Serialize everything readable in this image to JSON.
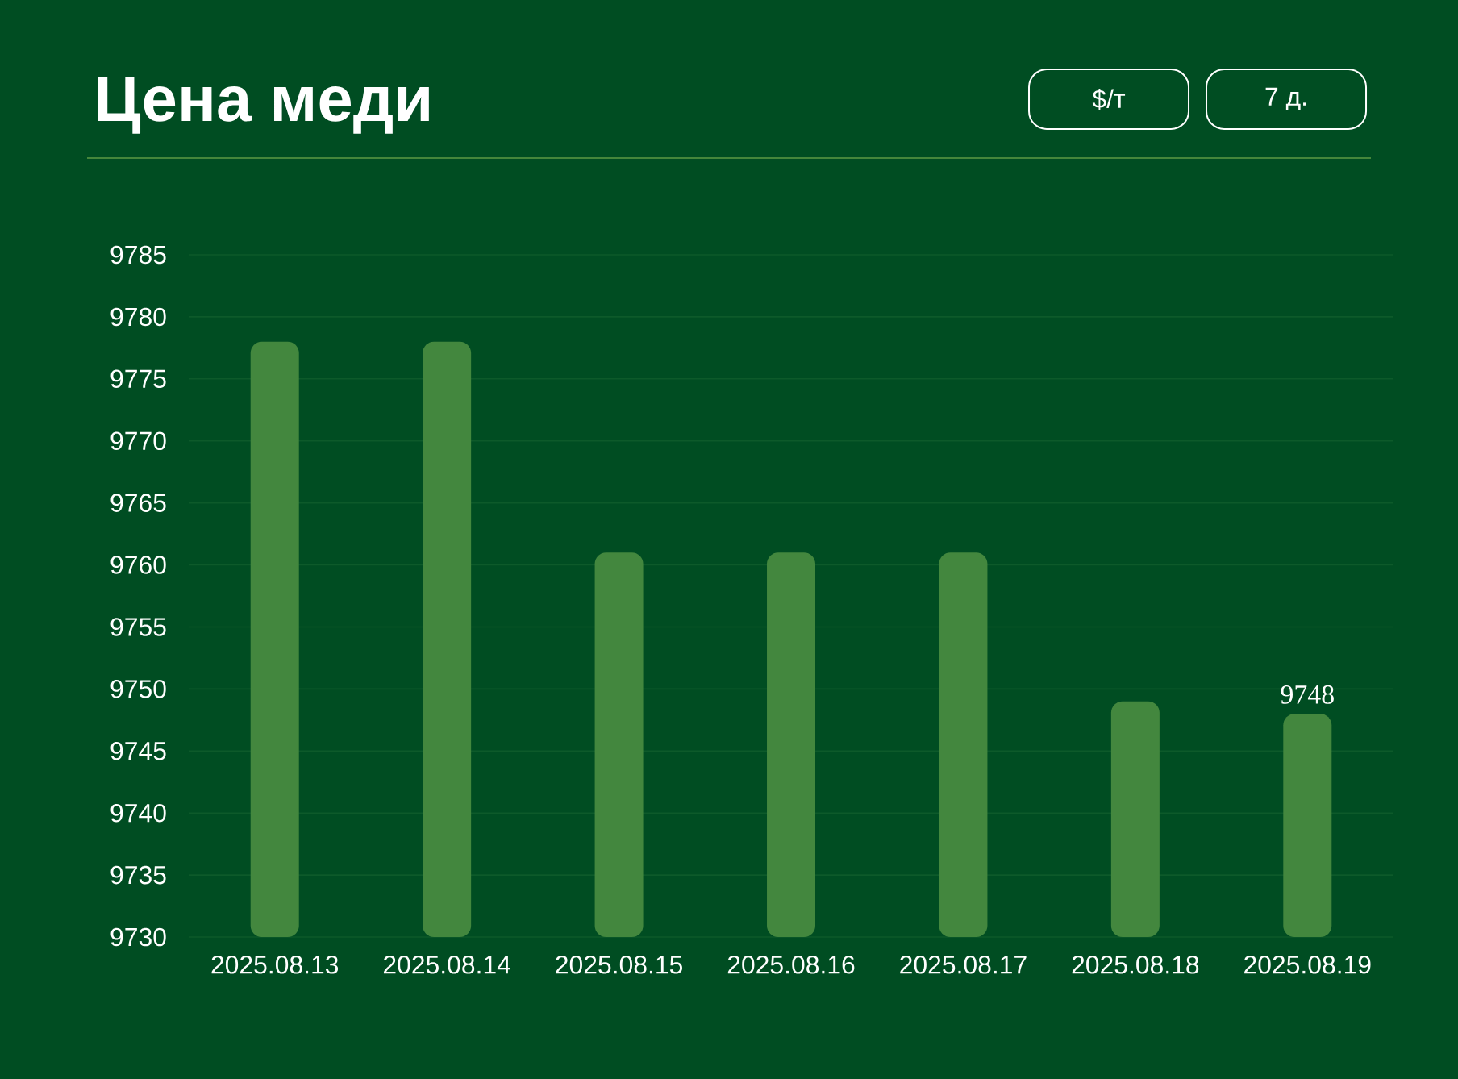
{
  "chart_data": {
    "type": "bar",
    "title": "Цена меди",
    "annotations": [
      "$/т",
      "7 д."
    ],
    "categories": [
      "2025.08.13",
      "2025.08.14",
      "2025.08.15",
      "2025.08.16",
      "2025.08.17",
      "2025.08.18",
      "2025.08.19"
    ],
    "values": [
      9778,
      9778,
      9761,
      9761,
      9761,
      9749,
      9748
    ],
    "value_labels": [
      null,
      null,
      null,
      null,
      null,
      null,
      "9748"
    ],
    "color": "#43873e",
    "ylim": [
      9730,
      9785
    ],
    "yticks": [
      9730,
      9735,
      9740,
      9745,
      9750,
      9755,
      9760,
      9765,
      9770,
      9775,
      9780,
      9785
    ],
    "grid": "y"
  }
}
